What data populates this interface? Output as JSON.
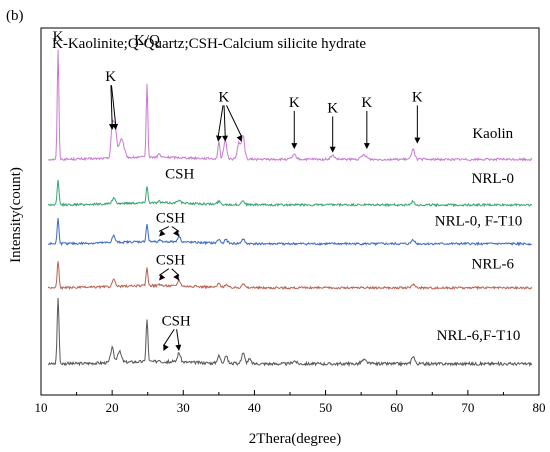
{
  "panel_label": "(b)",
  "chart_data": {
    "type": "line",
    "title": "",
    "xlabel": "2Thera(degree)",
    "ylabel": "Intensity(count)",
    "xlim": [
      10,
      80
    ],
    "ylim": [
      0,
      1
    ],
    "y_tick_labels": false,
    "grid": false,
    "x_ticks": [
      10,
      20,
      30,
      40,
      50,
      60,
      70,
      80
    ],
    "x_tick_labels": [
      "10",
      "20",
      "30",
      "40",
      "50",
      "60",
      "70",
      "80"
    ],
    "legend_text": "K-Kaolinite;Q-Quartz;CSH-Calcium silicite hydrate",
    "series": [
      {
        "name": "Kaolin",
        "color": "#c878d2",
        "baseline": 0.642,
        "noise": 0.003,
        "peaks": [
          [
            12.4,
            0.3,
            0.16
          ],
          [
            20.0,
            0.08,
            0.25
          ],
          [
            20.4,
            0.088,
            0.3
          ],
          [
            21.3,
            0.05,
            0.5
          ],
          [
            24.9,
            0.2,
            0.16
          ],
          [
            26.6,
            0.01,
            0.2
          ],
          [
            35.0,
            0.045,
            0.2
          ],
          [
            35.9,
            0.05,
            0.3
          ],
          [
            37.8,
            0.045,
            0.3
          ],
          [
            38.4,
            0.065,
            0.3
          ],
          [
            45.6,
            0.012,
            0.4
          ],
          [
            51.0,
            0.01,
            0.4
          ],
          [
            55.4,
            0.012,
            0.5
          ],
          [
            62.3,
            0.03,
            0.3
          ]
        ]
      },
      {
        "name": "NRL-0",
        "color": "#36a46c",
        "baseline": 0.518,
        "noise": 0.003,
        "peaks": [
          [
            12.4,
            0.065,
            0.18
          ],
          [
            20.2,
            0.015,
            0.3
          ],
          [
            24.9,
            0.045,
            0.18
          ],
          [
            26.6,
            0.004,
            0.2
          ],
          [
            29.4,
            0.01,
            0.3
          ],
          [
            35.0,
            0.008,
            0.3
          ],
          [
            38.4,
            0.012,
            0.3
          ],
          [
            62.3,
            0.01,
            0.3
          ]
        ]
      },
      {
        "name": "NRL-0, F-T10",
        "color": "#3a68c4",
        "baseline": 0.412,
        "noise": 0.003,
        "peaks": [
          [
            12.4,
            0.068,
            0.18
          ],
          [
            20.2,
            0.018,
            0.3
          ],
          [
            24.9,
            0.048,
            0.18
          ],
          [
            26.6,
            0.004,
            0.2
          ],
          [
            29.4,
            0.016,
            0.3
          ],
          [
            35.0,
            0.01,
            0.3
          ],
          [
            36.0,
            0.01,
            0.3
          ],
          [
            38.4,
            0.012,
            0.3
          ],
          [
            62.3,
            0.012,
            0.3
          ]
        ]
      },
      {
        "name": "NRL-6",
        "color": "#b86050",
        "baseline": 0.292,
        "noise": 0.003,
        "peaks": [
          [
            12.4,
            0.072,
            0.18
          ],
          [
            20.2,
            0.018,
            0.3
          ],
          [
            24.9,
            0.05,
            0.18
          ],
          [
            26.6,
            0.004,
            0.2
          ],
          [
            29.4,
            0.016,
            0.3
          ],
          [
            35.0,
            0.01,
            0.3
          ],
          [
            36.0,
            0.008,
            0.3
          ],
          [
            38.4,
            0.012,
            0.3
          ],
          [
            62.3,
            0.01,
            0.3
          ]
        ]
      },
      {
        "name": "NRL-6,F-T10",
        "color": "#555555",
        "baseline": 0.085,
        "noise": 0.004,
        "peaks": [
          [
            12.4,
            0.18,
            0.18
          ],
          [
            20.0,
            0.04,
            0.3
          ],
          [
            21.0,
            0.03,
            0.4
          ],
          [
            24.9,
            0.115,
            0.18
          ],
          [
            26.6,
            0.006,
            0.2
          ],
          [
            29.4,
            0.025,
            0.3
          ],
          [
            35.0,
            0.02,
            0.3
          ],
          [
            36.0,
            0.022,
            0.3
          ],
          [
            38.4,
            0.03,
            0.3
          ],
          [
            39.3,
            0.012,
            0.3
          ],
          [
            45.6,
            0.008,
            0.4
          ],
          [
            55.4,
            0.01,
            0.5
          ],
          [
            62.3,
            0.022,
            0.3
          ]
        ]
      }
    ],
    "peak_annotations": [
      {
        "text": "K",
        "x": 12.4,
        "y": 0.965,
        "arrow": false
      },
      {
        "text": "K",
        "x": 19.8,
        "y": 0.855,
        "arrow": true,
        "to_x": [
          20.0,
          20.5
        ],
        "to_y": 0.722
      },
      {
        "text": "K/Q",
        "x": 24.9,
        "y": 0.955,
        "arrow": false
      },
      {
        "text": "K",
        "x": 35.7,
        "y": 0.8,
        "arrow": true,
        "to_x": [
          34.9,
          35.9,
          38.2
        ],
        "to_y": 0.69
      },
      {
        "text": "K",
        "x": 45.6,
        "y": 0.785,
        "arrow": true,
        "to_x": [
          45.6
        ],
        "to_y": 0.67
      },
      {
        "text": "K",
        "x": 51.0,
        "y": 0.77,
        "arrow": true,
        "to_x": [
          51.0
        ],
        "to_y": 0.66
      },
      {
        "text": "K",
        "x": 55.8,
        "y": 0.785,
        "arrow": true,
        "to_x": [
          55.8
        ],
        "to_y": 0.67
      },
      {
        "text": "K",
        "x": 62.9,
        "y": 0.8,
        "arrow": true,
        "to_x": [
          62.9
        ],
        "to_y": 0.685
      },
      {
        "text": "CSH",
        "x": 29.5,
        "y": 0.59,
        "arrow": false
      },
      {
        "text": "CSH",
        "x": 28.2,
        "y": 0.47,
        "arrow": true,
        "to_x": [
          26.6,
          29.4
        ],
        "to_y": 0.432
      },
      {
        "text": "CSH",
        "x": 28.2,
        "y": 0.355,
        "arrow": true,
        "to_x": [
          26.6,
          29.4
        ],
        "to_y": 0.312
      },
      {
        "text": "CSH",
        "x": 29.0,
        "y": 0.19,
        "arrow": true,
        "to_x": [
          27.2,
          29.4
        ],
        "to_y": 0.12
      }
    ],
    "series_labels": [
      {
        "text": "Kaolin",
        "x": 73.5,
        "y": 0.7
      },
      {
        "text": "NRL-0",
        "x": 73.5,
        "y": 0.578
      },
      {
        "text": "NRL-0, F-T10",
        "x": 71.5,
        "y": 0.462
      },
      {
        "text": "NRL-6",
        "x": 73.5,
        "y": 0.345
      },
      {
        "text": "NRL-6,F-T10",
        "x": 71.5,
        "y": 0.15
      }
    ]
  }
}
